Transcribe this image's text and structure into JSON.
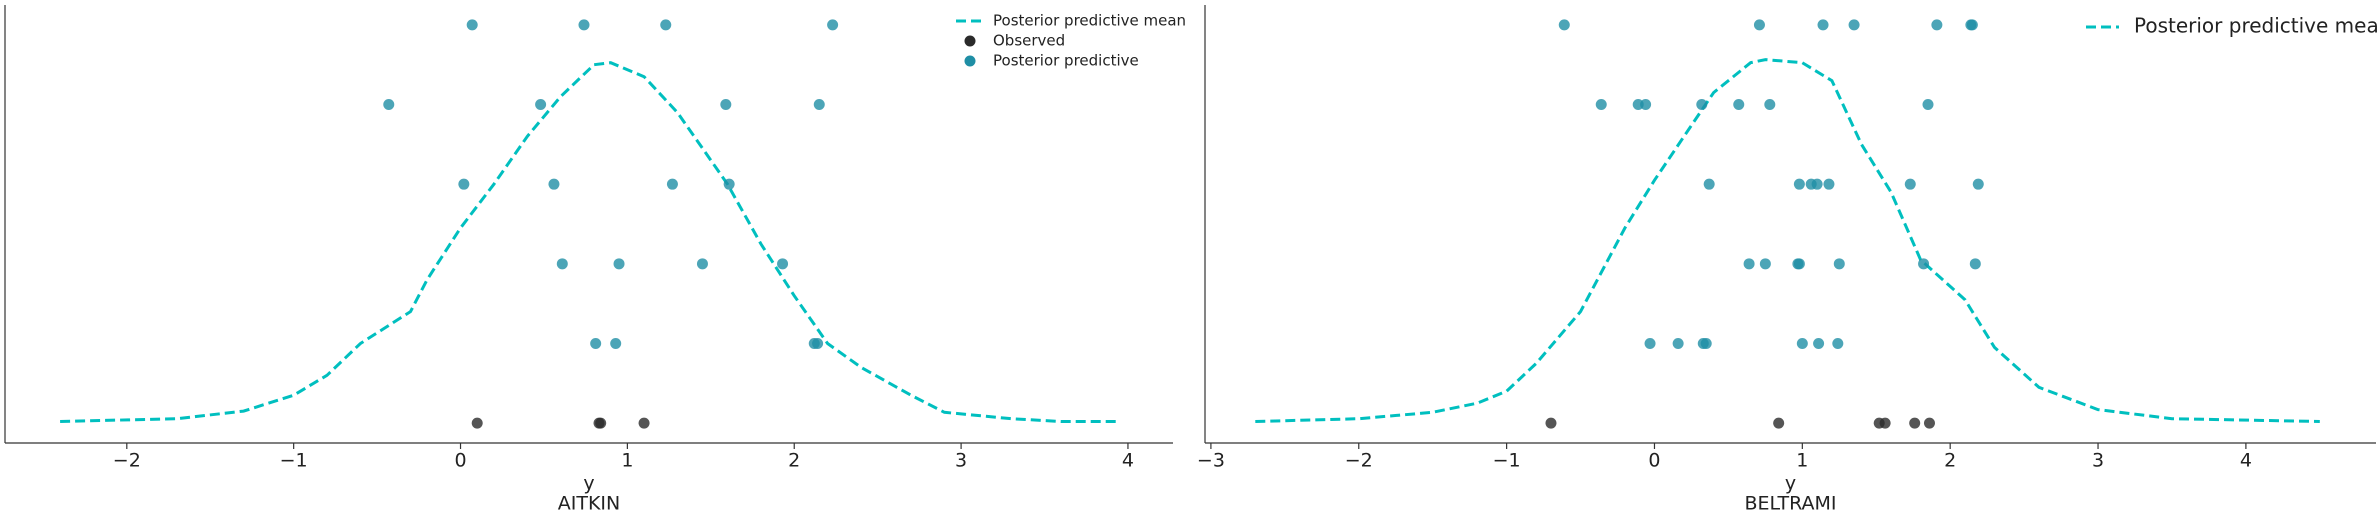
{
  "chart_data": [
    {
      "type": "scatter",
      "title": "AITKIN",
      "xlabel": "y",
      "xlim": [
        -2.73,
        4.27
      ],
      "ylim": [
        -0.05,
        1.05
      ],
      "xticks": [
        {
          "value": -2,
          "label": "−2"
        },
        {
          "value": -1,
          "label": "−1"
        },
        0,
        1,
        2,
        3,
        4
      ],
      "legend": "upper right",
      "series": [
        {
          "name": "Posterior predictive mean",
          "kind": "line",
          "color": "#00bfbf",
          "in_legend": true,
          "x": [
            -2.4,
            -1.7,
            -1.3,
            -1.0,
            -0.8,
            -0.6,
            -0.3,
            -0.2,
            0.0,
            0.2,
            0.4,
            0.6,
            0.8,
            0.9,
            1.1,
            1.3,
            1.45,
            1.6,
            1.8,
            2.0,
            2.2,
            2.4,
            2.7,
            2.9,
            3.3,
            3.6,
            3.95
          ],
          "y": [
            0.004,
            0.011,
            0.03,
            0.07,
            0.12,
            0.2,
            0.28,
            0.36,
            0.49,
            0.6,
            0.72,
            0.82,
            0.9,
            0.905,
            0.87,
            0.78,
            0.69,
            0.6,
            0.45,
            0.32,
            0.2,
            0.14,
            0.07,
            0.027,
            0.011,
            0.004,
            0.004
          ]
        },
        {
          "name": "Observed",
          "kind": "dots",
          "color": "#2b2b2b",
          "in_legend": true,
          "x": [
            0.1,
            0.83,
            0.84,
            1.1
          ],
          "y": [
            0,
            0,
            0,
            0
          ]
        },
        {
          "name": "Posterior predictive",
          "kind": "dots",
          "color": "#1f8ea5",
          "in_legend": true,
          "x": [
            0.07,
            0.74,
            1.23,
            2.23,
            -0.43,
            0.48,
            1.59,
            2.15,
            0.02,
            0.56,
            1.27,
            1.61,
            0.61,
            0.95,
            1.45,
            1.93,
            0.81,
            0.93,
            2.12,
            2.14
          ],
          "y": [
            1,
            1,
            1,
            1,
            0.8,
            0.8,
            0.8,
            0.8,
            0.6,
            0.6,
            0.6,
            0.6,
            0.4,
            0.4,
            0.4,
            0.4,
            0.2,
            0.2,
            0.2,
            0.2
          ]
        }
      ]
    },
    {
      "type": "scatter",
      "title": "BELTRAMI",
      "xlabel": "y",
      "xlim": [
        -3.04,
        4.88
      ],
      "ylim": [
        -0.05,
        1.05
      ],
      "xticks": [
        {
          "value": -3,
          "label": "−3"
        },
        {
          "value": -2,
          "label": "−2"
        },
        {
          "value": -1,
          "label": "−1"
        },
        0,
        1,
        2,
        3,
        4
      ],
      "legend": "upper right",
      "series": [
        {
          "name": "Posterior predictive mean",
          "kind": "line",
          "color": "#00bfbf",
          "in_legend": true,
          "x": [
            -2.7,
            -2.0,
            -1.5,
            -1.2,
            -1.0,
            -0.8,
            -0.5,
            -0.2,
            0.0,
            0.2,
            0.4,
            0.65,
            0.75,
            1.0,
            1.2,
            1.4,
            1.6,
            1.8,
            2.1,
            2.3,
            2.6,
            3.0,
            3.5,
            4.5
          ],
          "y": [
            0.004,
            0.011,
            0.027,
            0.05,
            0.08,
            0.15,
            0.28,
            0.49,
            0.61,
            0.72,
            0.83,
            0.905,
            0.913,
            0.905,
            0.86,
            0.7,
            0.58,
            0.41,
            0.31,
            0.19,
            0.09,
            0.034,
            0.011,
            0.004
          ]
        },
        {
          "name": "Observed",
          "kind": "dots",
          "color": "#2b2b2b",
          "in_legend": false,
          "x": [
            -0.7,
            0.84,
            1.52,
            1.56,
            1.76,
            1.86
          ],
          "y": [
            0,
            0,
            0,
            0,
            0,
            0
          ]
        },
        {
          "name": "Posterior predictive",
          "kind": "dots",
          "color": "#1f8ea5",
          "in_legend": false,
          "x": [
            -0.61,
            0.71,
            1.14,
            1.35,
            1.91,
            2.14,
            2.15,
            -0.36,
            -0.11,
            -0.06,
            0.32,
            0.57,
            0.78,
            1.85,
            0.37,
            0.98,
            1.06,
            1.1,
            1.18,
            1.73,
            2.19,
            0.64,
            0.75,
            0.97,
            0.98,
            1.25,
            1.82,
            2.17,
            -0.03,
            0.16,
            0.33,
            0.35,
            1.0,
            1.11,
            1.24
          ],
          "y": [
            1,
            1,
            1,
            1,
            1,
            1,
            1,
            0.8,
            0.8,
            0.8,
            0.8,
            0.8,
            0.8,
            0.8,
            0.6,
            0.6,
            0.6,
            0.6,
            0.6,
            0.6,
            0.6,
            0.4,
            0.4,
            0.4,
            0.4,
            0.4,
            0.4,
            0.4,
            0.2,
            0.2,
            0.2,
            0.2,
            0.2,
            0.2,
            0.2
          ]
        }
      ]
    }
  ]
}
